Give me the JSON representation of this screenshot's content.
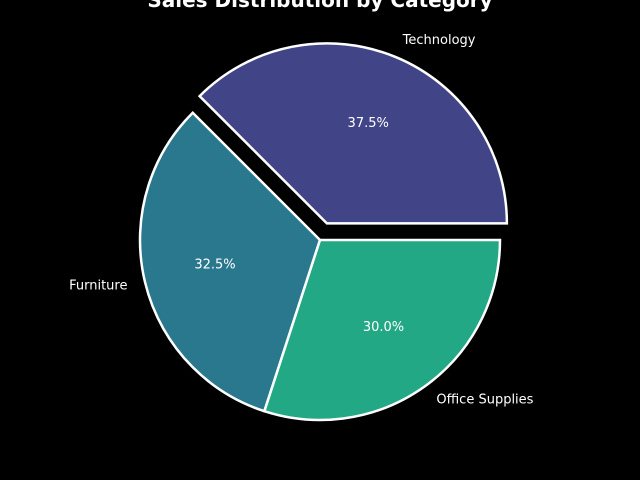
{
  "chart_data": {
    "type": "pie",
    "title": "Sales Distribution by Category",
    "slices": [
      {
        "label": "Technology",
        "value": 37.5,
        "display": "37.5%",
        "color": "#414487",
        "explode": true
      },
      {
        "label": "Furniture",
        "value": 32.5,
        "display": "32.5%",
        "color": "#2a788e",
        "explode": false
      },
      {
        "label": "Office Supplies",
        "value": 30.0,
        "display": "30.0%",
        "color": "#22a884",
        "explode": false
      }
    ],
    "edge_color": "#ffffff",
    "background": "#000000"
  }
}
